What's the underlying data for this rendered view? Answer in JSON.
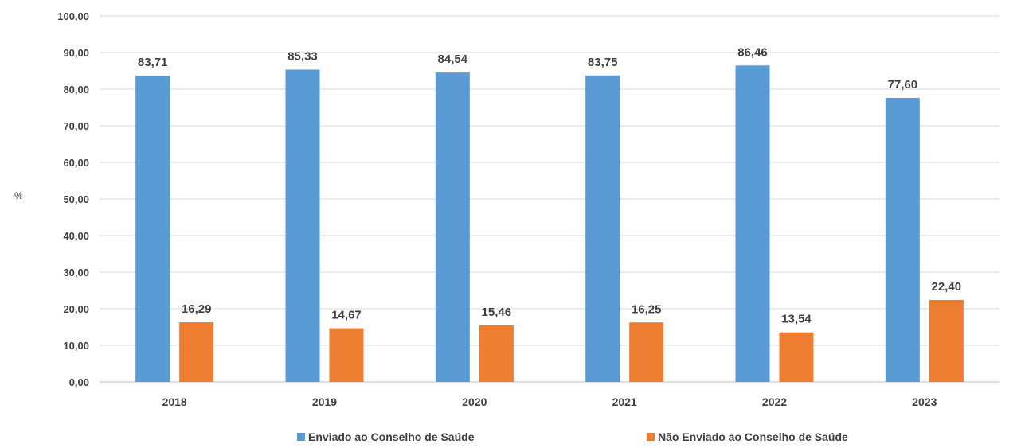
{
  "chart_data": {
    "type": "bar",
    "title": "",
    "xlabel": "",
    "ylabel": "%",
    "ylim": [
      0,
      100
    ],
    "y_tick_step": 10,
    "y_tick_labels": [
      "0,00",
      "10,00",
      "20,00",
      "30,00",
      "40,00",
      "50,00",
      "60,00",
      "70,00",
      "80,00",
      "90,00",
      "100,00"
    ],
    "grid": true,
    "legend_position": "bottom",
    "categories": [
      "2018",
      "2019",
      "2020",
      "2021",
      "2022",
      "2023"
    ],
    "series": [
      {
        "name": "Enviado ao Conselho de Saúde",
        "color": "#5B9BD5",
        "values": [
          83.71,
          85.33,
          84.54,
          83.75,
          86.46,
          77.6
        ],
        "labels": [
          "83,71",
          "85,33",
          "84,54",
          "83,75",
          "86,46",
          "77,60"
        ]
      },
      {
        "name": "Não Enviado ao Conselho de Saúde",
        "color": "#ED7D31",
        "values": [
          16.29,
          14.67,
          15.46,
          16.25,
          13.54,
          22.4
        ],
        "labels": [
          "16,29",
          "14,67",
          "15,46",
          "16,25",
          "13,54",
          "22,40"
        ]
      }
    ]
  }
}
